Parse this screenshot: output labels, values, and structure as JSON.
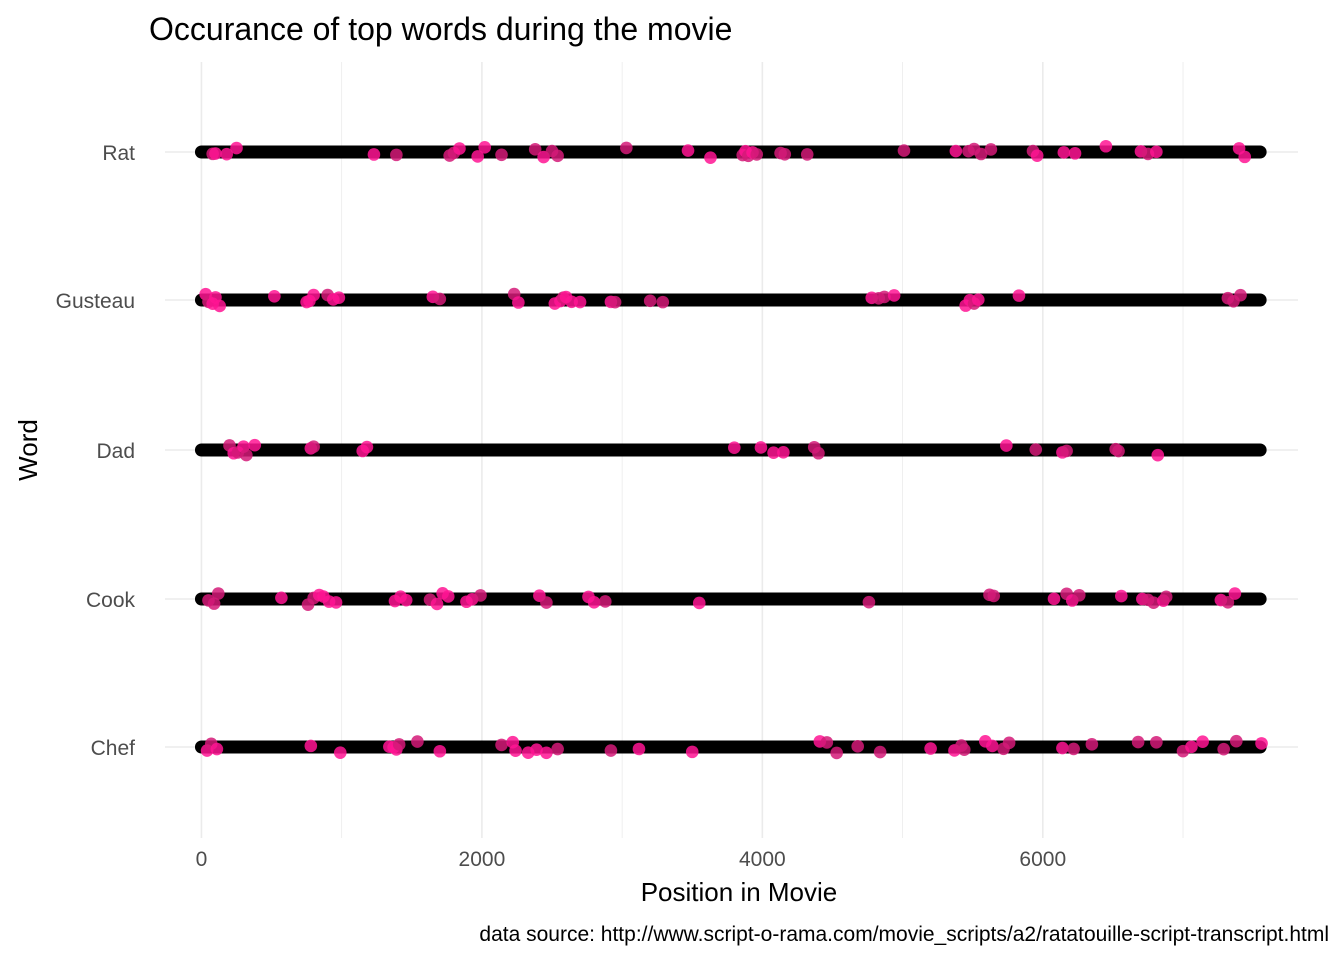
{
  "chart_data": {
    "type": "scatter",
    "title": "Occurance of top words during the movie",
    "xlabel": "Position in Movie",
    "ylabel": "Word",
    "caption": "data source: http://www.script-o-rama.com/movie_scripts/a2/ratatouille-script-transcript.html",
    "xlim": [
      -260,
      7820
    ],
    "x_ticks": [
      0,
      2000,
      4000,
      6000
    ],
    "x_tick_labels": [
      "0",
      "2000",
      "4000",
      "6000"
    ],
    "categories": [
      "Rat",
      "Gusteau",
      "Dad",
      "Cook",
      "Chef"
    ],
    "grid": true,
    "baseline_range": [
      0,
      7550
    ],
    "colors": {
      "highlight": "#ff1493",
      "baseline": "#000000",
      "grid": "#ebebeb"
    },
    "series": [
      {
        "word": "Rat",
        "x": [
          80,
          100,
          180,
          250,
          1230,
          1390,
          1770,
          1800,
          1840,
          1970,
          2020,
          2140,
          2380,
          2440,
          2500,
          2540,
          3030,
          3470,
          3630,
          3860,
          3880,
          3900,
          3930,
          3960,
          4130,
          4160,
          4320,
          5010,
          5380,
          5470,
          5510,
          5560,
          5630,
          5930,
          5960,
          6150,
          6230,
          6450,
          6700,
          6750,
          6810,
          7400,
          7440
        ]
      },
      {
        "word": "Gusteau",
        "x": [
          30,
          50,
          80,
          100,
          130,
          520,
          750,
          770,
          800,
          900,
          940,
          980,
          1650,
          1700,
          2230,
          2260,
          2520,
          2560,
          2580,
          2600,
          2640,
          2700,
          2920,
          2950,
          3200,
          3290,
          4780,
          4830,
          4870,
          4940,
          5450,
          5480,
          5510,
          5540,
          5830,
          7320,
          7360,
          7410
        ]
      },
      {
        "word": "Dad",
        "x": [
          200,
          230,
          260,
          300,
          320,
          380,
          780,
          800,
          1150,
          1180,
          3800,
          3990,
          4080,
          4150,
          4370,
          4400,
          5740,
          5950,
          6140,
          6170,
          6520,
          6540,
          6820
        ]
      },
      {
        "word": "Cook",
        "x": [
          50,
          90,
          120,
          570,
          760,
          800,
          840,
          870,
          910,
          960,
          1380,
          1420,
          1460,
          1630,
          1680,
          1720,
          1760,
          1890,
          1930,
          1990,
          2410,
          2460,
          2760,
          2800,
          2880,
          3550,
          4760,
          5620,
          5650,
          6080,
          6170,
          6210,
          6260,
          6560,
          6710,
          6750,
          6790,
          6860,
          6880,
          7270,
          7320,
          7370
        ]
      },
      {
        "word": "Chef",
        "x": [
          40,
          70,
          110,
          780,
          990,
          1340,
          1370,
          1390,
          1410,
          1540,
          1700,
          2140,
          2220,
          2240,
          2330,
          2390,
          2460,
          2540,
          2920,
          3120,
          3500,
          4410,
          4460,
          4530,
          4680,
          4840,
          5200,
          5370,
          5420,
          5440,
          5590,
          5640,
          5720,
          5760,
          6140,
          6220,
          6350,
          6680,
          6810,
          7000,
          7060,
          7140,
          7290,
          7380,
          7560
        ]
      }
    ]
  }
}
